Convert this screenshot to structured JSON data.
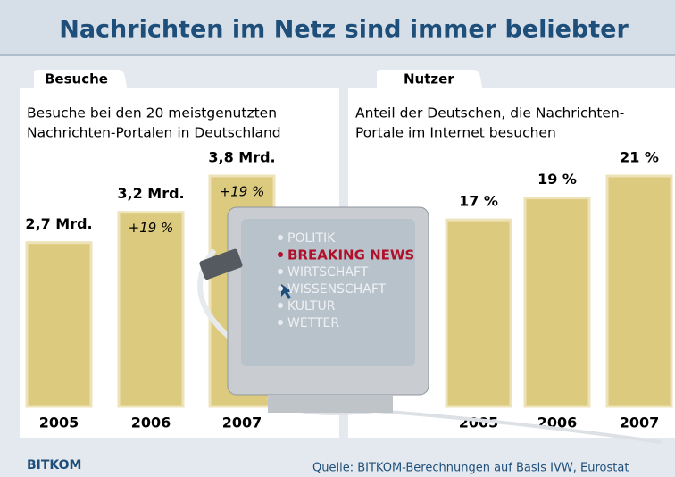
{
  "header": {
    "title": "Nachrichten im Netz sind immer beliebter"
  },
  "chart_data": [
    {
      "type": "bar",
      "tab": "Besuche",
      "subtitle": [
        "Besuche bei den 20 meistgenutzten",
        "Nachrichten-Portalen in Deutschland"
      ],
      "categories": [
        "2005",
        "2006",
        "2007"
      ],
      "values": [
        2.7,
        3.2,
        3.8
      ],
      "value_labels": [
        "2,7 Mrd.",
        "3,2 Mrd.",
        "3,8 Mrd."
      ],
      "annotations": [
        "+19 %",
        "+19 %"
      ],
      "color": "#dccb7e"
    },
    {
      "type": "bar",
      "tab": "Nutzer",
      "subtitle": [
        "Anteil der Deutschen, die Nachrichten-",
        "Portale im Internet besuchen"
      ],
      "categories": [
        "2005",
        "2006",
        "2007"
      ],
      "values": [
        17,
        19,
        21
      ],
      "value_labels": [
        "17 %",
        "19 %",
        "21 %"
      ],
      "color": "#dccb7e"
    }
  ],
  "illustration": {
    "menu": [
      "POLITIK",
      "BREAKING NEWS",
      "WIRTSCHAFT",
      "WISSENSCHAFT",
      "KULTUR",
      "WETTER"
    ]
  },
  "footer": {
    "logo": "BITKOM",
    "source": "Quelle: BITKOM-Berechnungen auf Basis IVW, Eurostat"
  }
}
